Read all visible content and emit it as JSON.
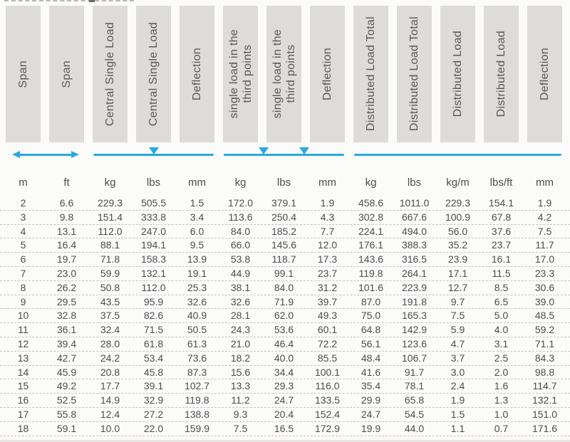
{
  "colors": {
    "accent_blue": "#29A9E1",
    "header_box_bg": "#DEDCD9",
    "header_text": "#57585A",
    "body_text": "#4B4C4E",
    "dash_gray": "#C4C4C4"
  },
  "table": {
    "columns": [
      {
        "label": "Span",
        "unit": "m"
      },
      {
        "label": "Span",
        "unit": "ft"
      },
      {
        "label": "Central Single Load",
        "unit": "kg"
      },
      {
        "label": "Central Single Load",
        "unit": "lbs"
      },
      {
        "label": "Deflection",
        "unit": "mm"
      },
      {
        "label": "single load in the\nthird points",
        "unit": "kg"
      },
      {
        "label": "single load in the\nthird points",
        "unit": "lbs"
      },
      {
        "label": "Deflection",
        "unit": "mm"
      },
      {
        "label": "Distributed Load Total",
        "unit": "kg"
      },
      {
        "label": "Distributed Load Total",
        "unit": "lbs"
      },
      {
        "label": "Distributed Load",
        "unit": "kg/m"
      },
      {
        "label": "Distributed Load",
        "unit": "lbs/ft"
      },
      {
        "label": "Deflection",
        "unit": "mm"
      }
    ],
    "diagrams": [
      {
        "name": "span-extent",
        "type": "double-headed-arrow",
        "col_start": 1,
        "col_span": 2
      },
      {
        "name": "central-point-load",
        "type": "beam-line-one-triangle",
        "col_start": 3,
        "col_span": 3
      },
      {
        "name": "third-point-loads",
        "type": "beam-line-two-triangles",
        "col_start": 6,
        "col_span": 3
      },
      {
        "name": "uniform-distributed-load",
        "type": "beam-line-plain",
        "col_start": 9,
        "col_span": 5
      }
    ],
    "rows": [
      [
        "2",
        "6.6",
        "229.3",
        "505.5",
        "1.5",
        "172.0",
        "379.1",
        "1.9",
        "458.6",
        "1011.0",
        "229.3",
        "154.1",
        "1.9"
      ],
      [
        "3",
        "9.8",
        "151.4",
        "333.8",
        "3.4",
        "113.6",
        "250.4",
        "4.3",
        "302.8",
        "667.6",
        "100.9",
        "67.8",
        "4.2"
      ],
      [
        "4",
        "13.1",
        "112.0",
        "247.0",
        "6.0",
        "84.0",
        "185.2",
        "7.7",
        "224.1",
        "494.0",
        "56.0",
        "37.6",
        "7.5"
      ],
      [
        "5",
        "16.4",
        "88.1",
        "194.1",
        "9.5",
        "66.0",
        "145.6",
        "12.0",
        "176.1",
        "388.3",
        "35.2",
        "23.7",
        "11.7"
      ],
      [
        "6",
        "19.7",
        "71.8",
        "158.3",
        "13.9",
        "53.8",
        "118.7",
        "17.3",
        "143.6",
        "316.5",
        "23.9",
        "16.1",
        "17.0"
      ],
      [
        "7",
        "23.0",
        "59.9",
        "132.1",
        "19.1",
        "44.9",
        "99.1",
        "23.7",
        "119.8",
        "264.1",
        "17.1",
        "11.5",
        "23.3"
      ],
      [
        "8",
        "26.2",
        "50.8",
        "112.0",
        "25.3",
        "38.1",
        "84.0",
        "31.2",
        "101.6",
        "223.9",
        "12.7",
        "8.5",
        "30.6"
      ],
      [
        "9",
        "29.5",
        "43.5",
        "95.9",
        "32.6",
        "32.6",
        "71.9",
        "39.7",
        "87.0",
        "191.8",
        "9.7",
        "6.5",
        "39.0"
      ],
      [
        "10",
        "32.8",
        "37.5",
        "82.6",
        "40.9",
        "28.1",
        "62.0",
        "49.3",
        "75.0",
        "165.3",
        "7.5",
        "5.0",
        "48.5"
      ],
      [
        "11",
        "36.1",
        "32.4",
        "71.5",
        "50.5",
        "24.3",
        "53.6",
        "60.1",
        "64.8",
        "142.9",
        "5.9",
        "4.0",
        "59.2"
      ],
      [
        "12",
        "39.4",
        "28.0",
        "61.8",
        "61.3",
        "21.0",
        "46.4",
        "72.2",
        "56.1",
        "123.6",
        "4.7",
        "3.1",
        "71.1"
      ],
      [
        "13",
        "42.7",
        "24.2",
        "53.4",
        "73.6",
        "18.2",
        "40.0",
        "85.5",
        "48.4",
        "106.7",
        "3.7",
        "2.5",
        "84.3"
      ],
      [
        "14",
        "45.9",
        "20.8",
        "45.8",
        "87.3",
        "15.6",
        "34.4",
        "100.1",
        "41.6",
        "91.7",
        "3.0",
        "2.0",
        "98.8"
      ],
      [
        "15",
        "49.2",
        "17.7",
        "39.1",
        "102.7",
        "13.3",
        "29.3",
        "116.0",
        "35.4",
        "78.1",
        "2.4",
        "1.6",
        "114.7"
      ],
      [
        "16",
        "52.5",
        "14.9",
        "32.9",
        "119.8",
        "11.2",
        "24.7",
        "133.5",
        "29.9",
        "65.8",
        "1.9",
        "1.3",
        "132.1"
      ],
      [
        "17",
        "55.8",
        "12.4",
        "27.2",
        "138.8",
        "9.3",
        "20.4",
        "152.4",
        "24.7",
        "54.5",
        "1.5",
        "1.0",
        "151.0"
      ],
      [
        "18",
        "59.1",
        "10.0",
        "22.0",
        "159.9",
        "7.5",
        "16.5",
        "172.9",
        "19.9",
        "44.0",
        "1.1",
        "0.7",
        "171.6"
      ]
    ]
  }
}
